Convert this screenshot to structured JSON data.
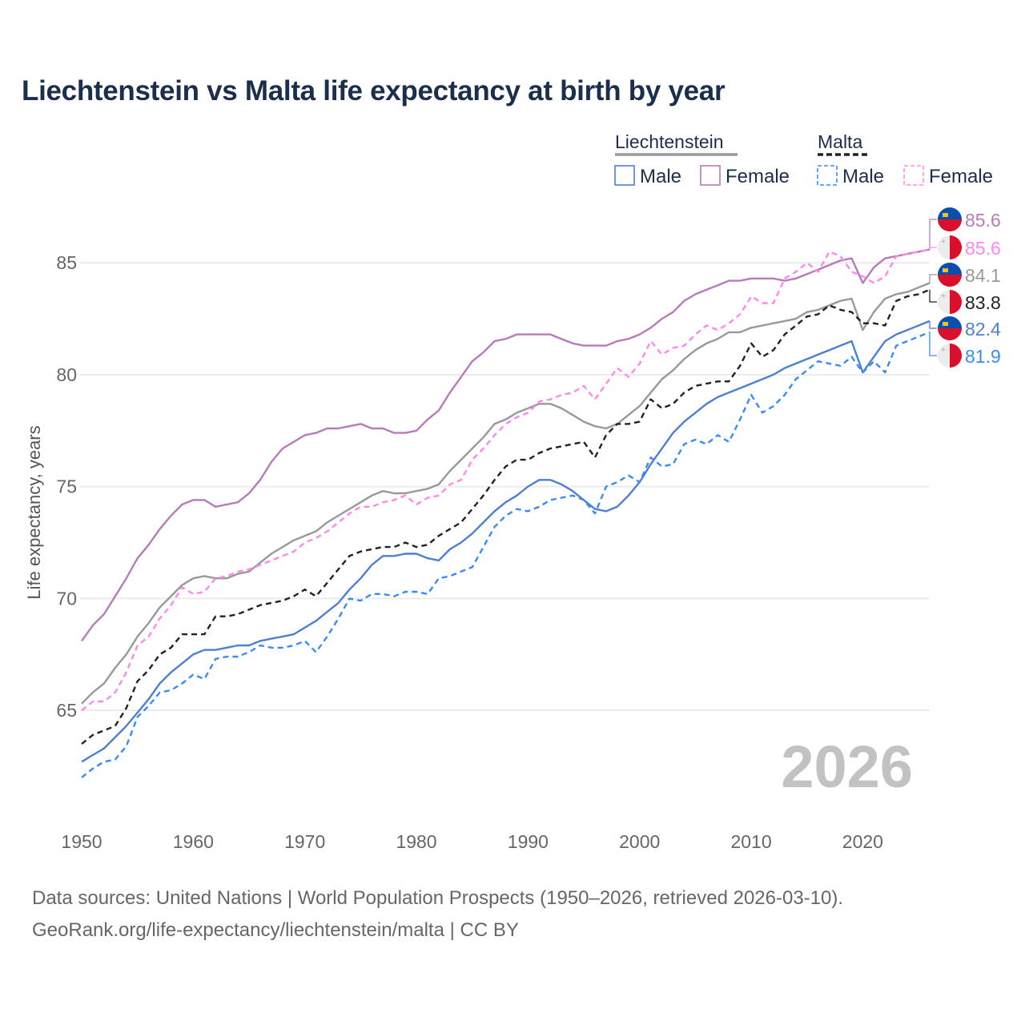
{
  "title": "Liechtenstein vs Malta life expectancy at birth by year",
  "year_watermark": "2026",
  "footer": {
    "line1": "Data sources: United Nations | World Population Prospects (1950–2026, retrieved 2026-03-10).",
    "line2": "GeoRank.org/life-expectancy/liechtenstein/malta | CC BY"
  },
  "legend": {
    "groups": [
      {
        "name": "Liechtenstein",
        "color": "#999999",
        "dashed": false,
        "items": [
          {
            "label": "Male",
            "color": "#4f7fcf"
          },
          {
            "label": "Female",
            "color": "#b77bb7"
          }
        ]
      },
      {
        "name": "Malta",
        "color": "#222222",
        "dashed": true,
        "items": [
          {
            "label": "Male",
            "color": "#3b8bf5"
          },
          {
            "label": "Female",
            "color": "#ff88ee"
          }
        ]
      }
    ]
  },
  "chart_data": {
    "type": "line",
    "title": "Liechtenstein vs Malta life expectancy at birth by year",
    "xlabel": "",
    "ylabel": "Life expectancy, years",
    "xlim": [
      1950,
      2026
    ],
    "ylim": [
      60.6,
      87.8
    ],
    "xticks": [
      1950,
      1960,
      1970,
      1980,
      1990,
      2000,
      2010,
      2020
    ],
    "yticks": [
      65,
      70,
      75,
      80,
      85
    ],
    "grid": true,
    "x_start": 1950,
    "series": [
      {
        "name": "Liechtenstein Female",
        "country": "liechtenstein",
        "color": "#b77bb7",
        "dashed": false,
        "end_label": "85.6",
        "values": [
          68.1,
          68.8,
          69.3,
          70.1,
          70.9,
          71.8,
          72.4,
          73.1,
          73.7,
          74.2,
          74.4,
          74.4,
          74.1,
          74.2,
          74.3,
          74.7,
          75.3,
          76.1,
          76.7,
          77.0,
          77.3,
          77.4,
          77.6,
          77.6,
          77.7,
          77.8,
          77.6,
          77.6,
          77.4,
          77.4,
          77.5,
          78.0,
          78.4,
          79.2,
          79.9,
          80.6,
          81.0,
          81.5,
          81.6,
          81.8,
          81.8,
          81.8,
          81.8,
          81.6,
          81.4,
          81.3,
          81.3,
          81.3,
          81.5,
          81.6,
          81.8,
          82.1,
          82.5,
          82.8,
          83.3,
          83.6,
          83.8,
          84.0,
          84.2,
          84.2,
          84.3,
          84.3,
          84.3,
          84.2,
          84.3,
          84.5,
          84.7,
          84.9,
          85.1,
          85.2,
          84.1,
          84.8,
          85.2,
          85.3,
          85.4,
          85.5,
          85.6
        ]
      },
      {
        "name": "Malta Female",
        "country": "malta",
        "color": "#ff88ee",
        "dashed": true,
        "end_label": "85.6",
        "values": [
          65.0,
          65.4,
          65.4,
          65.8,
          66.7,
          67.9,
          68.3,
          69.1,
          69.7,
          70.5,
          70.2,
          70.3,
          70.9,
          71.0,
          71.2,
          71.3,
          71.5,
          71.7,
          71.9,
          72.1,
          72.5,
          72.7,
          73.0,
          73.4,
          73.8,
          74.1,
          74.1,
          74.3,
          74.4,
          74.6,
          74.2,
          74.5,
          74.6,
          75.1,
          75.3,
          76.2,
          76.7,
          77.3,
          77.8,
          78.1,
          78.3,
          78.8,
          78.9,
          79.1,
          79.2,
          79.5,
          78.9,
          79.6,
          80.3,
          79.9,
          80.5,
          81.5,
          80.9,
          81.2,
          81.3,
          81.8,
          82.2,
          82.0,
          82.3,
          82.7,
          83.5,
          83.2,
          83.2,
          84.3,
          84.6,
          85.0,
          84.6,
          85.5,
          85.3,
          84.6,
          84.4,
          84.1,
          84.4,
          85.3,
          85.4,
          85.5,
          85.6
        ]
      },
      {
        "name": "Liechtenstein",
        "country": "liechtenstein",
        "color": "#999999",
        "dashed": false,
        "end_label": "84.1",
        "values": [
          65.3,
          65.8,
          66.2,
          66.9,
          67.5,
          68.3,
          68.9,
          69.6,
          70.1,
          70.6,
          70.9,
          71.0,
          70.9,
          70.9,
          71.1,
          71.2,
          71.6,
          72.0,
          72.3,
          72.6,
          72.8,
          73.0,
          73.4,
          73.7,
          74.0,
          74.3,
          74.6,
          74.8,
          74.7,
          74.7,
          74.8,
          74.9,
          75.1,
          75.7,
          76.2,
          76.7,
          77.2,
          77.8,
          78.0,
          78.3,
          78.5,
          78.7,
          78.7,
          78.5,
          78.2,
          77.9,
          77.7,
          77.6,
          77.8,
          78.2,
          78.6,
          79.2,
          79.8,
          80.2,
          80.7,
          81.1,
          81.4,
          81.6,
          81.9,
          81.9,
          82.1,
          82.2,
          82.3,
          82.4,
          82.5,
          82.8,
          82.9,
          83.1,
          83.3,
          83.4,
          82.0,
          82.8,
          83.4,
          83.6,
          83.7,
          83.9,
          84.1
        ]
      },
      {
        "name": "Malta",
        "country": "malta",
        "color": "#222222",
        "dashed": true,
        "end_label": "83.8",
        "values": [
          63.5,
          63.9,
          64.1,
          64.3,
          65.1,
          66.3,
          66.8,
          67.5,
          67.8,
          68.4,
          68.4,
          68.4,
          69.2,
          69.2,
          69.3,
          69.5,
          69.7,
          69.8,
          69.9,
          70.1,
          70.4,
          70.1,
          70.7,
          71.3,
          71.9,
          72.1,
          72.2,
          72.3,
          72.3,
          72.5,
          72.3,
          72.4,
          72.8,
          73.1,
          73.4,
          74.0,
          74.6,
          75.3,
          75.9,
          76.2,
          76.2,
          76.5,
          76.7,
          76.8,
          76.9,
          77.0,
          76.3,
          77.3,
          77.8,
          77.8,
          77.9,
          78.9,
          78.5,
          78.7,
          79.2,
          79.5,
          79.6,
          79.7,
          79.7,
          80.4,
          81.4,
          80.8,
          81.1,
          81.8,
          82.2,
          82.6,
          82.7,
          83.1,
          82.9,
          82.8,
          82.3,
          82.3,
          82.2,
          83.3,
          83.5,
          83.6,
          83.8
        ]
      },
      {
        "name": "Liechtenstein Male",
        "country": "liechtenstein",
        "color": "#4f7fcf",
        "dashed": false,
        "end_label": "82.4",
        "values": [
          62.7,
          63.0,
          63.3,
          63.8,
          64.3,
          64.9,
          65.5,
          66.2,
          66.7,
          67.1,
          67.5,
          67.7,
          67.7,
          67.8,
          67.9,
          67.9,
          68.1,
          68.2,
          68.3,
          68.4,
          68.7,
          69.0,
          69.4,
          69.8,
          70.4,
          70.9,
          71.5,
          71.9,
          71.9,
          72.0,
          72.0,
          71.8,
          71.7,
          72.2,
          72.5,
          72.9,
          73.4,
          73.9,
          74.3,
          74.6,
          75.0,
          75.3,
          75.3,
          75.1,
          74.8,
          74.4,
          74.0,
          73.9,
          74.1,
          74.6,
          75.2,
          76.0,
          76.7,
          77.4,
          77.9,
          78.3,
          78.7,
          79.0,
          79.2,
          79.4,
          79.6,
          79.8,
          80.0,
          80.3,
          80.5,
          80.7,
          80.9,
          81.1,
          81.3,
          81.5,
          80.1,
          80.8,
          81.5,
          81.8,
          82.0,
          82.2,
          82.4
        ]
      },
      {
        "name": "Malta Male",
        "country": "malta",
        "color": "#3b8bf5",
        "dashed": true,
        "end_label": "81.9",
        "values": [
          62.0,
          62.4,
          62.7,
          62.8,
          63.4,
          64.7,
          65.2,
          65.8,
          65.9,
          66.2,
          66.6,
          66.4,
          67.3,
          67.4,
          67.4,
          67.6,
          67.9,
          67.8,
          67.8,
          67.9,
          68.1,
          67.6,
          68.3,
          69.1,
          70.0,
          69.9,
          70.2,
          70.2,
          70.1,
          70.3,
          70.3,
          70.2,
          70.9,
          71.0,
          71.2,
          71.4,
          72.3,
          73.2,
          73.7,
          74.0,
          73.9,
          74.1,
          74.4,
          74.5,
          74.6,
          74.4,
          73.8,
          75.0,
          75.2,
          75.5,
          75.2,
          76.3,
          75.9,
          76.0,
          76.9,
          77.1,
          76.9,
          77.3,
          77.0,
          78.0,
          79.1,
          78.3,
          78.6,
          79.1,
          79.8,
          80.2,
          80.6,
          80.5,
          80.4,
          80.8,
          80.1,
          80.6,
          80.1,
          81.3,
          81.5,
          81.7,
          81.9
        ]
      }
    ]
  }
}
